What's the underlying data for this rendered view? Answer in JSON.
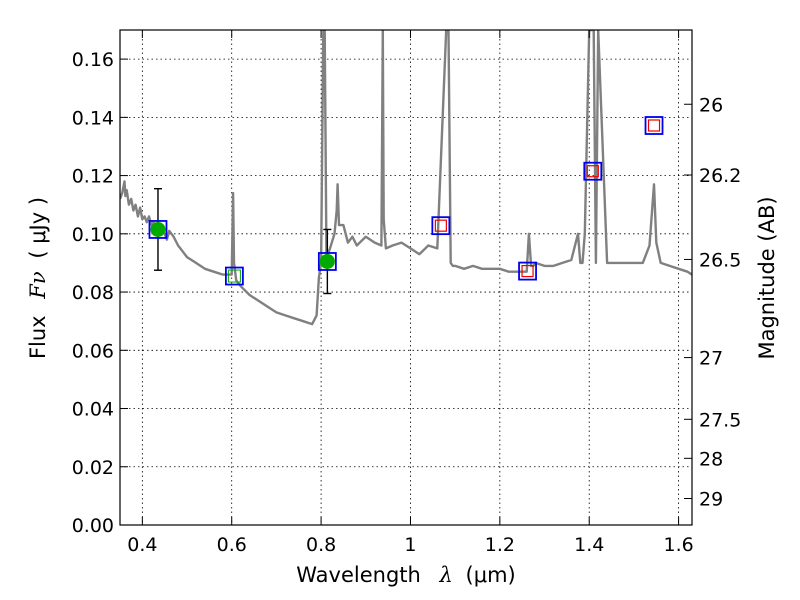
{
  "chart_data": {
    "type": "scatter",
    "title": "",
    "xlabel_main": "Wavelength",
    "xlabel_symbol": "λ",
    "xlabel_unit": "(μm)",
    "ylabel_main": "Flux",
    "ylabel_symbol": "Fν",
    "ylabel_unit": "( μJy )",
    "y2label": "Magnitude (AB)",
    "xlim": [
      0.35,
      1.63
    ],
    "ylim": [
      0.0,
      0.17
    ],
    "grid": true,
    "x_ticks": [
      0.4,
      0.6,
      0.8,
      1.0,
      1.2,
      1.4,
      1.6
    ],
    "x_tick_labels": [
      "0.4",
      "0.6",
      "0.8",
      "1",
      "1.2",
      "1.4",
      "1.6"
    ],
    "y_ticks": [
      0.0,
      0.02,
      0.04,
      0.06,
      0.08,
      0.1,
      0.12,
      0.14,
      0.16
    ],
    "y_tick_labels": [
      "0.00",
      "0.02",
      "0.04",
      "0.06",
      "0.08",
      "0.10",
      "0.12",
      "0.14",
      "0.16"
    ],
    "y2_ticks": [
      {
        "mag_label": "26",
        "flux": 0.1445
      },
      {
        "mag_label": "26.2",
        "flux": 0.1202
      },
      {
        "mag_label": "26.5",
        "flux": 0.0912
      },
      {
        "mag_label": "27",
        "flux": 0.0575
      },
      {
        "mag_label": "27.5",
        "flux": 0.0363
      },
      {
        "mag_label": "28",
        "flux": 0.0229
      },
      {
        "mag_label": "29",
        "flux": 0.0091
      }
    ],
    "colors": {
      "spectrum": "#808080",
      "detection": "#00aa00",
      "model_box": "#0000ee",
      "upper_limit": "#ee0000",
      "errorbar": "#000000"
    },
    "spectrum": {
      "x": [
        0.35,
        0.355,
        0.36,
        0.362,
        0.365,
        0.37,
        0.375,
        0.38,
        0.385,
        0.39,
        0.395,
        0.4,
        0.405,
        0.41,
        0.415,
        0.42,
        0.425,
        0.43,
        0.435,
        0.44,
        0.445,
        0.45,
        0.455,
        0.46,
        0.47,
        0.48,
        0.49,
        0.5,
        0.52,
        0.54,
        0.56,
        0.58,
        0.6,
        0.603,
        0.605,
        0.607,
        0.61,
        0.62,
        0.64,
        0.66,
        0.68,
        0.7,
        0.72,
        0.74,
        0.76,
        0.78,
        0.79,
        0.795,
        0.8,
        0.805,
        0.808,
        0.81,
        0.812,
        0.815,
        0.82,
        0.83,
        0.835,
        0.837,
        0.84,
        0.85,
        0.86,
        0.87,
        0.88,
        0.9,
        0.92,
        0.935,
        0.938,
        0.94,
        0.945,
        0.96,
        0.98,
        1.0,
        1.02,
        1.04,
        1.06,
        1.08,
        1.085,
        1.09,
        1.095,
        1.1,
        1.12,
        1.14,
        1.16,
        1.18,
        1.2,
        1.22,
        1.24,
        1.26,
        1.265,
        1.27,
        1.275,
        1.28,
        1.3,
        1.32,
        1.34,
        1.36,
        1.375,
        1.38,
        1.385,
        1.39,
        1.4,
        1.41,
        1.415,
        1.42,
        1.44,
        1.46,
        1.48,
        1.5,
        1.52,
        1.535,
        1.545,
        1.55,
        1.56,
        1.58,
        1.6,
        1.62,
        1.63
      ],
      "y": [
        0.112,
        0.114,
        0.118,
        0.113,
        0.115,
        0.11,
        0.112,
        0.108,
        0.11,
        0.106,
        0.109,
        0.105,
        0.106,
        0.104,
        0.106,
        0.103,
        0.104,
        0.102,
        0.101,
        0.1,
        0.101,
        0.1,
        0.098,
        0.101,
        0.099,
        0.096,
        0.094,
        0.092,
        0.09,
        0.088,
        0.087,
        0.086,
        0.086,
        0.114,
        0.09,
        0.088,
        0.084,
        0.082,
        0.079,
        0.077,
        0.075,
        0.073,
        0.072,
        0.071,
        0.07,
        0.069,
        0.072,
        0.085,
        0.09,
        0.17,
        0.17,
        0.13,
        0.09,
        0.093,
        0.095,
        0.1,
        0.108,
        0.117,
        0.103,
        0.103,
        0.097,
        0.099,
        0.096,
        0.099,
        0.097,
        0.096,
        0.17,
        0.105,
        0.095,
        0.096,
        0.097,
        0.095,
        0.093,
        0.096,
        0.095,
        0.17,
        0.17,
        0.09,
        0.089,
        0.089,
        0.088,
        0.089,
        0.088,
        0.088,
        0.088,
        0.087,
        0.087,
        0.087,
        0.1,
        0.089,
        0.089,
        0.09,
        0.089,
        0.089,
        0.09,
        0.091,
        0.1,
        0.09,
        0.09,
        0.1,
        0.17,
        0.17,
        0.09,
        0.17,
        0.09,
        0.09,
        0.09,
        0.09,
        0.09,
        0.096,
        0.117,
        0.097,
        0.09,
        0.089,
        0.088,
        0.087,
        0.086
      ]
    },
    "filters": [
      {
        "x": 0.435,
        "model": 0.1015,
        "observed": 0.1015,
        "err": 0.014,
        "kind": "detection"
      },
      {
        "x": 0.606,
        "model": 0.0855,
        "observed": 0.0855,
        "err": 0,
        "kind": "model"
      },
      {
        "x": 0.814,
        "model": 0.0905,
        "observed": 0.0905,
        "err": 0.011,
        "kind": "detection"
      },
      {
        "x": 1.068,
        "model": 0.1028,
        "observed": 0.1028,
        "err": 0,
        "kind": "upper_limit"
      },
      {
        "x": 1.262,
        "model": 0.0872,
        "observed": 0.0872,
        "err": 0,
        "kind": "upper_limit"
      },
      {
        "x": 1.408,
        "model": 0.1215,
        "observed": 0.1215,
        "err": 0,
        "kind": "upper_limit"
      },
      {
        "x": 1.545,
        "model": 0.1372,
        "observed": 0.1372,
        "err": 0,
        "kind": "upper_limit"
      }
    ]
  }
}
